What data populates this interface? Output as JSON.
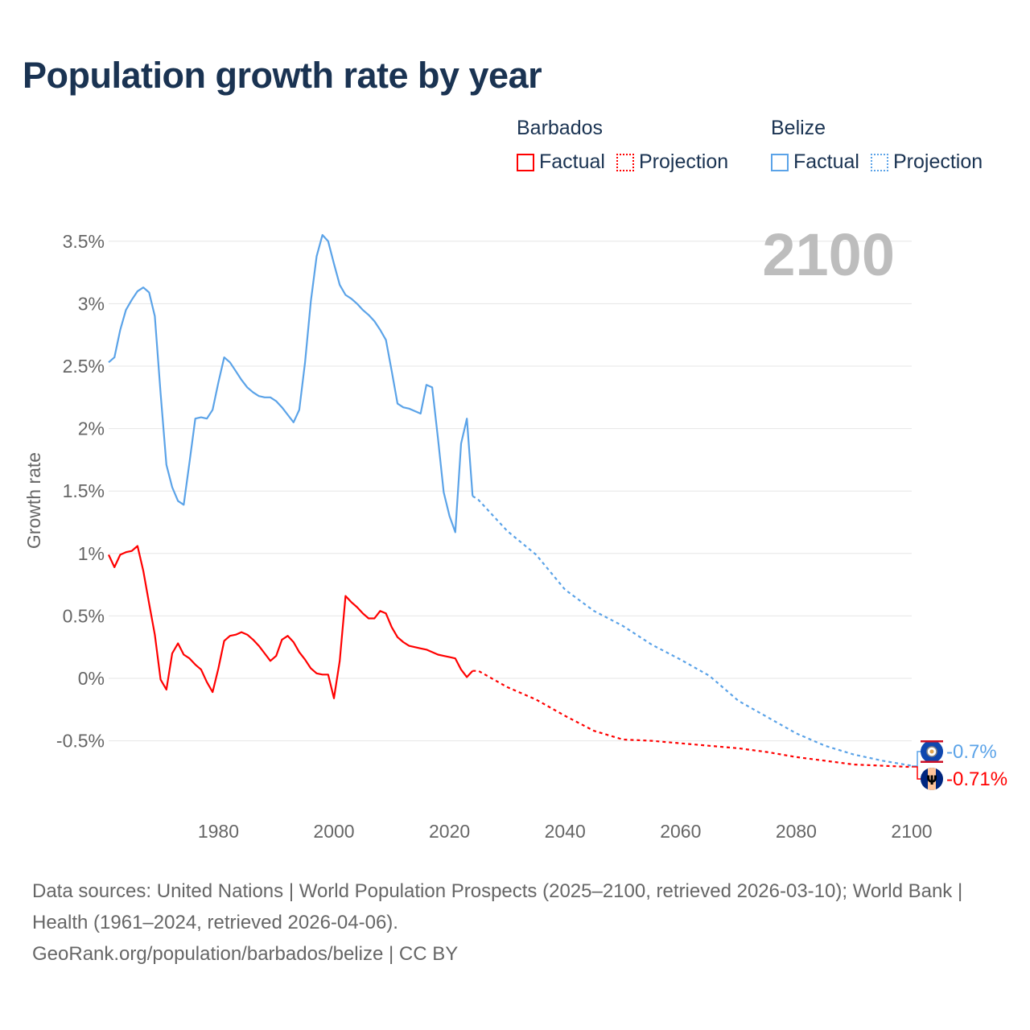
{
  "title": "Population growth rate by year",
  "legend": {
    "groups": [
      {
        "name": "Barbados",
        "color": "#ff0000",
        "items": [
          "Factual",
          "Projection"
        ]
      },
      {
        "name": "Belize",
        "color": "#5ba3e8",
        "items": [
          "Factual",
          "Projection"
        ]
      }
    ]
  },
  "year_display": "2100",
  "end_labels": {
    "belize": "-0.7%",
    "barbados": "-0.71%"
  },
  "footer": {
    "sources": "Data sources: United Nations | World Population Prospects (2025–2100, retrieved 2026-03-10); World Bank | Health (1961–2024, retrieved 2026-04-06).",
    "credit": "GeoRank.org/population/barbados/belize | CC BY"
  },
  "chart_data": {
    "type": "line",
    "title": "Population growth rate by year",
    "xlabel": "",
    "ylabel": "Growth rate",
    "xlim": [
      1961,
      2100
    ],
    "ylim": [
      -0.9,
      3.6
    ],
    "x_ticks": [
      "1980",
      "2000",
      "2020",
      "2040",
      "2060",
      "2080",
      "2100"
    ],
    "y_ticks": [
      "-0.5%",
      "0%",
      "0.5%",
      "1%",
      "1.5%",
      "2%",
      "2.5%",
      "3%",
      "3.5%"
    ],
    "grid": true,
    "legend_position": "top-right",
    "series": [
      {
        "name": "Belize Factual",
        "color": "#5ba3e8",
        "dashed": false,
        "start_year": 1961,
        "values": [
          2.53,
          2.57,
          2.79,
          2.95,
          3.03,
          3.1,
          3.13,
          3.09,
          2.9,
          2.28,
          1.71,
          1.53,
          1.42,
          1.39,
          1.73,
          2.08,
          2.09,
          2.08,
          2.15,
          2.37,
          2.57,
          2.53,
          2.46,
          2.39,
          2.33,
          2.29,
          2.26,
          2.25,
          2.25,
          2.22,
          2.17,
          2.11,
          2.05,
          2.15,
          2.53,
          3.02,
          3.38,
          3.55,
          3.5,
          3.32,
          3.15,
          3.07,
          3.04,
          3.0,
          2.95,
          2.91,
          2.86,
          2.79,
          2.71,
          2.46,
          2.2,
          2.17,
          2.16,
          2.14,
          2.12,
          2.35,
          2.33,
          1.92,
          1.49,
          1.3,
          1.17,
          1.88,
          2.08,
          1.46
        ]
      },
      {
        "name": "Belize Projection",
        "color": "#5ba3e8",
        "dashed": true,
        "x": [
          2024,
          2025,
          2030,
          2035,
          2040,
          2045,
          2050,
          2055,
          2060,
          2065,
          2070,
          2075,
          2080,
          2085,
          2090,
          2095,
          2100
        ],
        "values": [
          1.46,
          1.43,
          1.18,
          0.99,
          0.71,
          0.54,
          0.42,
          0.27,
          0.15,
          0.02,
          -0.18,
          -0.31,
          -0.44,
          -0.54,
          -0.61,
          -0.66,
          -0.7
        ]
      },
      {
        "name": "Barbados Factual",
        "color": "#ff0000",
        "dashed": false,
        "start_year": 1961,
        "values": [
          0.99,
          0.89,
          0.99,
          1.01,
          1.02,
          1.06,
          0.86,
          0.6,
          0.35,
          -0.01,
          -0.09,
          0.2,
          0.28,
          0.19,
          0.16,
          0.11,
          0.07,
          -0.03,
          -0.11,
          0.08,
          0.3,
          0.34,
          0.35,
          0.37,
          0.35,
          0.31,
          0.26,
          0.2,
          0.14,
          0.18,
          0.31,
          0.34,
          0.29,
          0.21,
          0.15,
          0.08,
          0.04,
          0.03,
          0.03,
          -0.16,
          0.14,
          0.66,
          0.61,
          0.57,
          0.52,
          0.48,
          0.48,
          0.54,
          0.52,
          0.41,
          0.33,
          0.29,
          0.26,
          0.25,
          0.24,
          0.23,
          0.21,
          0.19,
          0.18,
          0.17,
          0.16,
          0.07,
          0.01,
          0.06
        ]
      },
      {
        "name": "Barbados Projection",
        "color": "#ff0000",
        "dashed": true,
        "x": [
          2024,
          2025,
          2030,
          2035,
          2040,
          2045,
          2050,
          2055,
          2060,
          2065,
          2070,
          2075,
          2080,
          2085,
          2090,
          2095,
          2100
        ],
        "values": [
          0.06,
          0.06,
          -0.07,
          -0.17,
          -0.3,
          -0.42,
          -0.49,
          -0.5,
          -0.52,
          -0.54,
          -0.56,
          -0.59,
          -0.63,
          -0.66,
          -0.69,
          -0.7,
          -0.71
        ]
      }
    ]
  }
}
